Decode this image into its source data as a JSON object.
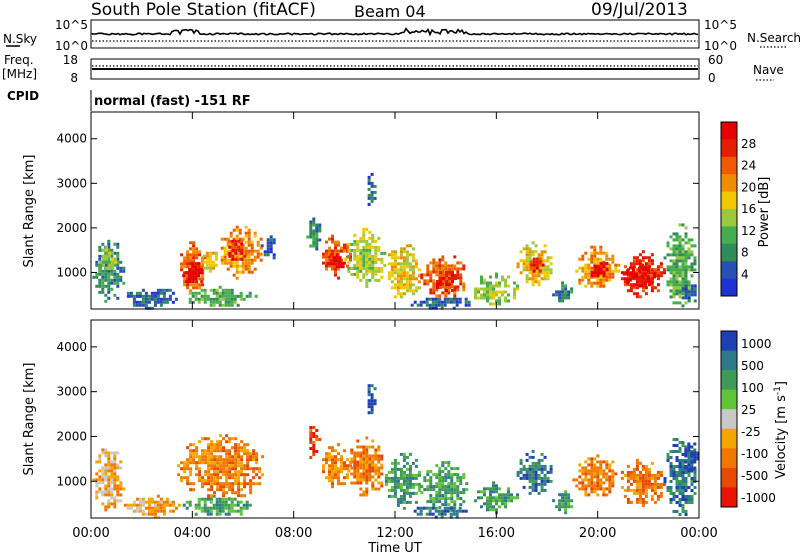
{
  "header": {
    "station": "South Pole Station (fitACF)",
    "beam": "Beam 04",
    "date": "09/Jul/2013"
  },
  "sky_panel": {
    "left_label": "N.Sky",
    "right_label": "N.Search",
    "left_ticks": [
      "10^5",
      "10^0"
    ],
    "right_ticks": [
      "10^5",
      "10^0"
    ]
  },
  "freq_panel": {
    "left_label_1": "Freq.",
    "left_label_2": "[MHz]",
    "left_ticks": [
      "18",
      "8"
    ],
    "right_label": "Nave",
    "right_ticks": [
      "60",
      "0"
    ]
  },
  "cpid": {
    "label": "CPID",
    "value": "normal (fast) -151 RF"
  },
  "colors": {
    "power": [
      "#1e32d2",
      "#2850b4",
      "#2f8c5a",
      "#43ad4f",
      "#9bc83c",
      "#f0c800",
      "#f08c00",
      "#ef5a00",
      "#e61e00",
      "#e60000"
    ],
    "velocity_pos": [
      "#1e40b4",
      "#2e7a8a",
      "#3f9a55",
      "#5fc43a"
    ],
    "velocity_zero": "#c8c8c8",
    "velocity_neg": [
      "#f5a400",
      "#f07800",
      "#e84a00",
      "#e61400"
    ]
  },
  "chart_data": [
    {
      "type": "heatmap",
      "name": "power",
      "ylabel": "Slant Range [km]",
      "yticks": [
        "1000",
        "2000",
        "3000",
        "4000"
      ],
      "ylim": [
        180,
        4600
      ],
      "xlim": [
        0,
        24
      ],
      "colorbar_label": "Power [dB]",
      "colorbar_ticks": [
        "4",
        "8",
        "12",
        "16",
        "20",
        "24",
        "28"
      ],
      "clim": [
        0,
        32
      ],
      "blobs": [
        {
          "t0": 0.05,
          "t1": 1.3,
          "r0": 350,
          "r1": 1800,
          "c": 2
        },
        {
          "t0": 0.2,
          "t1": 1.0,
          "r0": 1050,
          "r1": 1600,
          "c": 4
        },
        {
          "t0": 1.3,
          "t1": 3.5,
          "r0": 220,
          "r1": 700,
          "c": 1
        },
        {
          "t0": 3.4,
          "t1": 4.6,
          "r0": 600,
          "r1": 1700,
          "c": 7
        },
        {
          "t0": 3.6,
          "t1": 4.4,
          "r0": 700,
          "r1": 1300,
          "c": 9
        },
        {
          "t0": 4.3,
          "t1": 5.0,
          "r0": 1000,
          "r1": 1600,
          "c": 5
        },
        {
          "t0": 5.0,
          "t1": 6.8,
          "r0": 900,
          "r1": 2050,
          "c": 6
        },
        {
          "t0": 5.3,
          "t1": 6.1,
          "r0": 1300,
          "r1": 1800,
          "c": 8
        },
        {
          "t0": 3.5,
          "t1": 6.5,
          "r0": 250,
          "r1": 700,
          "c": 3
        },
        {
          "t0": 6.7,
          "t1": 7.3,
          "r0": 1300,
          "r1": 1900,
          "c": 1
        },
        {
          "t0": 8.5,
          "t1": 9.0,
          "r0": 1500,
          "r1": 2300,
          "c": 2
        },
        {
          "t0": 9.0,
          "t1": 10.2,
          "r0": 900,
          "r1": 1850,
          "c": 7
        },
        {
          "t0": 9.3,
          "t1": 10.0,
          "r0": 1050,
          "r1": 1500,
          "c": 9
        },
        {
          "t0": 10.0,
          "t1": 11.6,
          "r0": 700,
          "r1": 2000,
          "c": 4
        },
        {
          "t0": 10.8,
          "t1": 11.2,
          "r0": 2500,
          "r1": 3300,
          "c": 1
        },
        {
          "t0": 11.6,
          "t1": 13.0,
          "r0": 400,
          "r1": 1700,
          "c": 5
        },
        {
          "t0": 13.0,
          "t1": 14.8,
          "r0": 350,
          "r1": 1450,
          "c": 7
        },
        {
          "t0": 13.5,
          "t1": 14.5,
          "r0": 600,
          "r1": 1100,
          "c": 8
        },
        {
          "t0": 12.5,
          "t1": 15.0,
          "r0": 200,
          "r1": 500,
          "c": 1
        },
        {
          "t0": 15.0,
          "t1": 16.8,
          "r0": 300,
          "r1": 1000,
          "c": 4
        },
        {
          "t0": 16.8,
          "t1": 18.2,
          "r0": 700,
          "r1": 1700,
          "c": 5
        },
        {
          "t0": 17.2,
          "t1": 17.8,
          "r0": 1000,
          "r1": 1400,
          "c": 8
        },
        {
          "t0": 18.2,
          "t1": 19.0,
          "r0": 300,
          "r1": 800,
          "c": 2
        },
        {
          "t0": 19.0,
          "t1": 20.8,
          "r0": 650,
          "r1": 1600,
          "c": 6
        },
        {
          "t0": 19.6,
          "t1": 20.4,
          "r0": 900,
          "r1": 1300,
          "c": 9
        },
        {
          "t0": 20.8,
          "t1": 22.6,
          "r0": 450,
          "r1": 1500,
          "c": 8
        },
        {
          "t0": 21.0,
          "t1": 22.2,
          "r0": 700,
          "r1": 1200,
          "c": 9
        },
        {
          "t0": 22.6,
          "t1": 23.9,
          "r0": 250,
          "r1": 2100,
          "c": 3
        },
        {
          "t0": 23.2,
          "t1": 23.9,
          "r0": 300,
          "r1": 800,
          "c": 1
        }
      ]
    },
    {
      "type": "heatmap",
      "name": "velocity",
      "ylabel": "Slant Range [km]",
      "yticks": [
        "1000",
        "2000",
        "3000",
        "4000"
      ],
      "ylim": [
        180,
        4600
      ],
      "xlim": [
        0,
        24
      ],
      "xticks": [
        "00:00",
        "04:00",
        "08:00",
        "12:00",
        "16:00",
        "20:00",
        "00:00"
      ],
      "xlabel": "Time UT",
      "colorbar_label": "Velocity [m s^-1]",
      "colorbar_ticks": [
        "1000",
        "500",
        "100",
        "25",
        "-25",
        "-100",
        "-500",
        "-1000"
      ],
      "blobs": [
        {
          "t0": 0.05,
          "t1": 1.3,
          "r0": 350,
          "r1": 1800,
          "c": 5
        },
        {
          "t0": 1.3,
          "t1": 3.5,
          "r0": 220,
          "r1": 700,
          "c": 5
        },
        {
          "t0": 3.4,
          "t1": 6.8,
          "r0": 600,
          "r1": 2050,
          "c": 6
        },
        {
          "t0": 3.5,
          "t1": 6.5,
          "r0": 250,
          "r1": 700,
          "c": 2
        },
        {
          "t0": 8.5,
          "t1": 9.0,
          "r0": 1500,
          "r1": 2300,
          "c": 7
        },
        {
          "t0": 9.0,
          "t1": 10.2,
          "r0": 900,
          "r1": 1850,
          "c": 6
        },
        {
          "t0": 10.0,
          "t1": 11.6,
          "r0": 700,
          "r1": 2000,
          "c": 6
        },
        {
          "t0": 10.8,
          "t1": 11.2,
          "r0": 2500,
          "r1": 3300,
          "c": 0
        },
        {
          "t0": 11.6,
          "t1": 13.0,
          "r0": 400,
          "r1": 1700,
          "c": 2
        },
        {
          "t0": 13.0,
          "t1": 14.8,
          "r0": 350,
          "r1": 1450,
          "c": 2
        },
        {
          "t0": 12.5,
          "t1": 15.0,
          "r0": 200,
          "r1": 500,
          "c": 1
        },
        {
          "t0": 15.0,
          "t1": 16.8,
          "r0": 300,
          "r1": 1000,
          "c": 2
        },
        {
          "t0": 16.8,
          "t1": 18.2,
          "r0": 700,
          "r1": 1700,
          "c": 1
        },
        {
          "t0": 18.2,
          "t1": 19.0,
          "r0": 300,
          "r1": 800,
          "c": 2
        },
        {
          "t0": 19.0,
          "t1": 20.8,
          "r0": 650,
          "r1": 1600,
          "c": 6
        },
        {
          "t0": 20.8,
          "t1": 22.6,
          "r0": 450,
          "r1": 1500,
          "c": 6
        },
        {
          "t0": 22.6,
          "t1": 23.9,
          "r0": 250,
          "r1": 2100,
          "c": 1
        },
        {
          "t0": 23.3,
          "t1": 23.9,
          "r0": 1200,
          "r1": 2000,
          "c": 0
        }
      ]
    }
  ]
}
